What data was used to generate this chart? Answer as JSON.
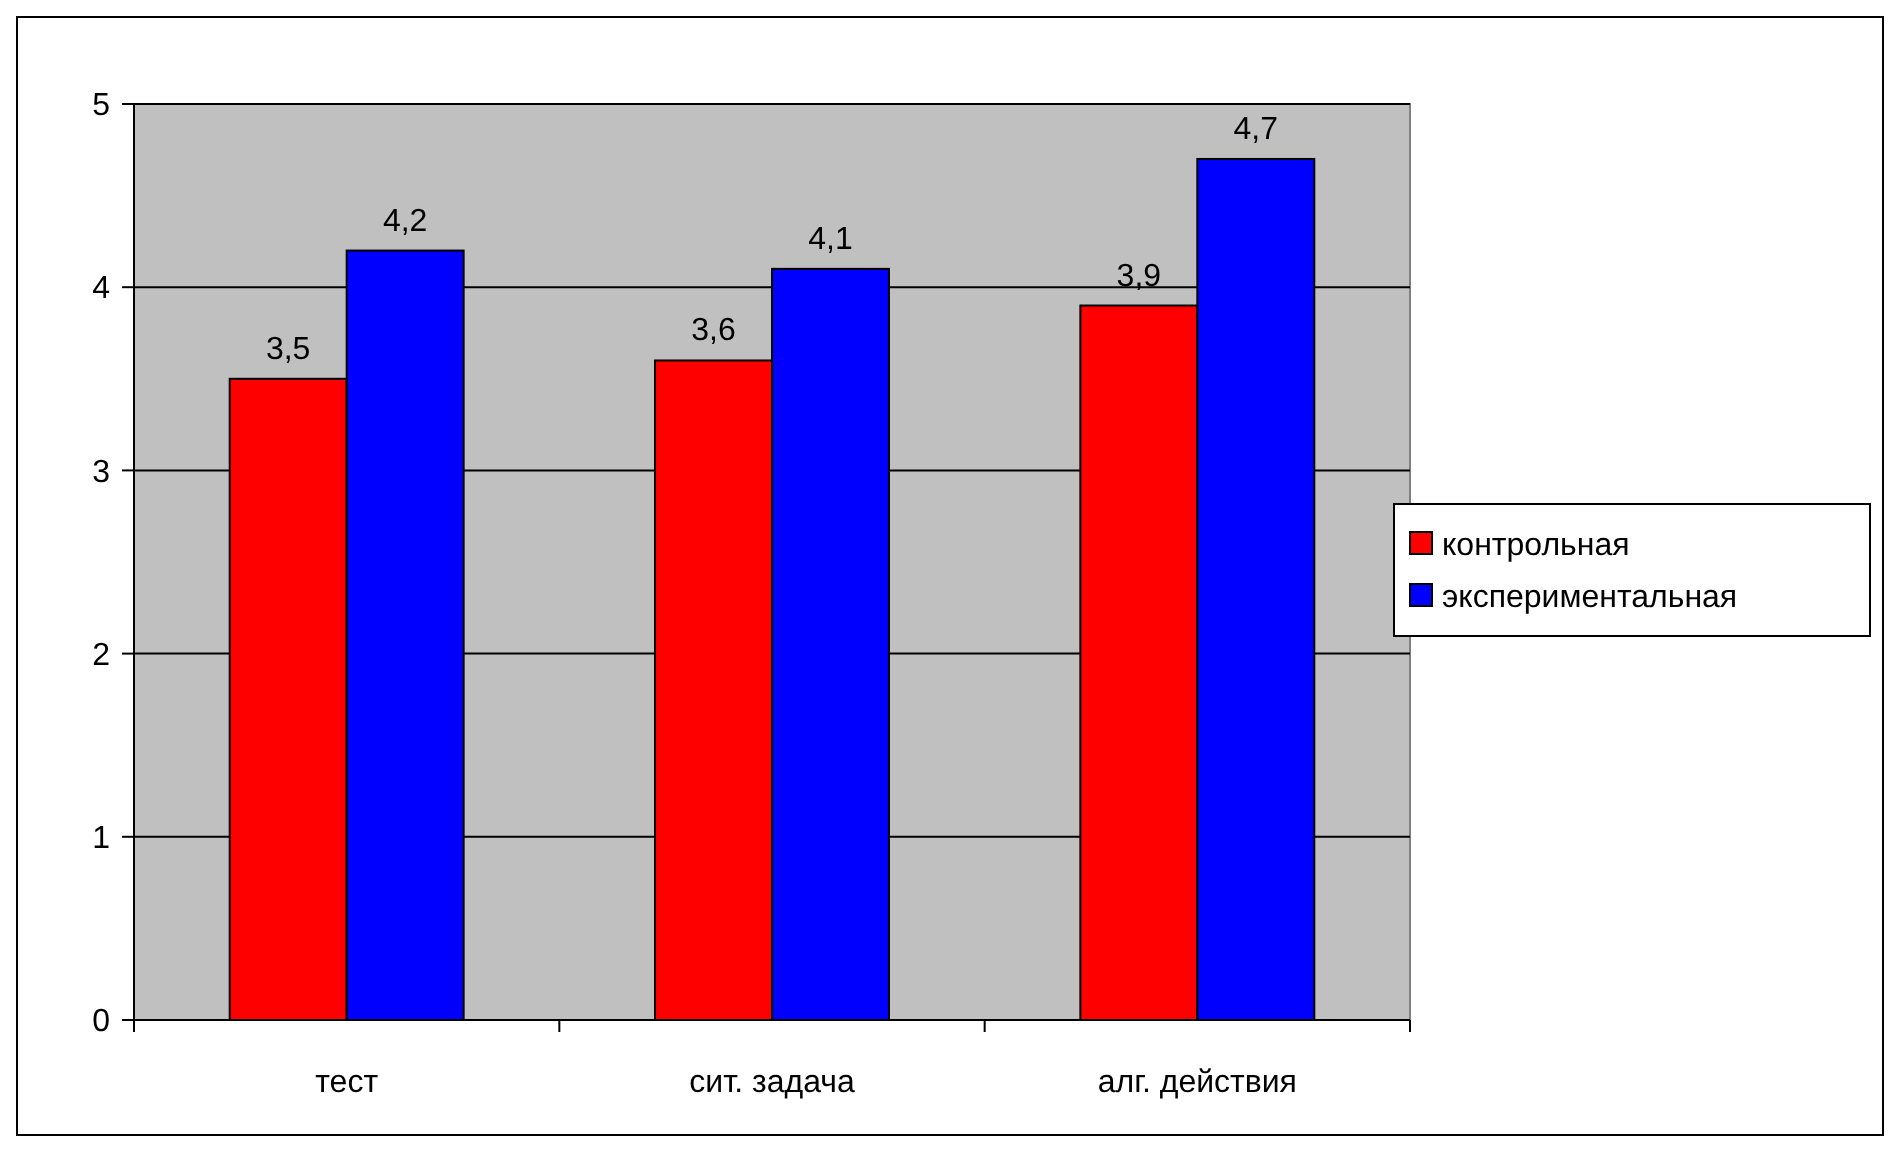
{
  "chart_data": {
    "type": "bar",
    "categories": [
      "тест",
      "сит. задача",
      "алг. действия"
    ],
    "series": [
      {
        "name": "контрольная",
        "color": "#ff0000",
        "values": [
          3.5,
          3.6,
          3.9
        ],
        "value_labels": [
          "3,5",
          "3,6",
          "3,9"
        ]
      },
      {
        "name": "экспериментальная",
        "color": "#0000ff",
        "values": [
          4.2,
          4.1,
          4.7
        ],
        "value_labels": [
          "4,2",
          "4,1",
          "4,7"
        ]
      }
    ],
    "ylim": [
      0,
      5
    ],
    "yticks": [
      0,
      1,
      2,
      3,
      4,
      5
    ],
    "grid": "y",
    "legend": "right"
  }
}
